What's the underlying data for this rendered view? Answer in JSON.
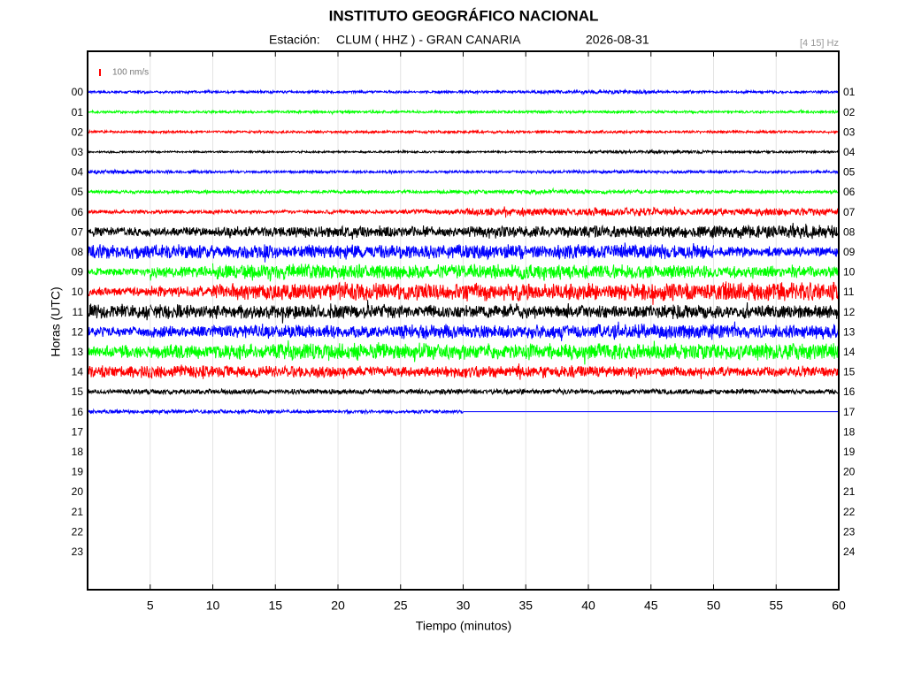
{
  "chart_data": {
    "type": "helicorder",
    "title": "INSTITUTO GEOGRÁFICO NACIONAL",
    "station_label": "Estación:",
    "station": "CLUM ( HHZ ) - GRAN CANARIA",
    "date": "2026-08-31",
    "filter": "[4 15] Hz",
    "scale_bar": 100,
    "scale_bar_label": "100 nm/s",
    "scale_bar_color": "#ff0000",
    "x_label": "Tiempo (minutos)",
    "y_label": "Horas (UTC)",
    "xlim": [
      0,
      60
    ],
    "xticks": [
      5,
      10,
      15,
      20,
      25,
      30,
      35,
      40,
      45,
      50,
      55,
      60
    ],
    "grid": true,
    "left_labels": [
      "00",
      "01",
      "02",
      "03",
      "04",
      "05",
      "06",
      "07",
      "08",
      "09",
      "10",
      "11",
      "12",
      "13",
      "14",
      "15",
      "16",
      "17",
      "18",
      "19",
      "20",
      "21",
      "22",
      "23"
    ],
    "right_labels": [
      "01",
      "02",
      "03",
      "04",
      "05",
      "06",
      "07",
      "08",
      "09",
      "10",
      "11",
      "12",
      "13",
      "14",
      "15",
      "16",
      "17",
      "18",
      "19",
      "20",
      "21",
      "22",
      "23",
      "24"
    ],
    "traces": [
      {
        "color": "#0000ff",
        "values": [
          20,
          20,
          20,
          20,
          20,
          20,
          20,
          25,
          30,
          20,
          20,
          20
        ]
      },
      {
        "color": "#00ff00",
        "values": [
          20,
          20,
          20,
          20,
          20,
          20,
          20,
          20,
          20,
          20,
          20,
          20
        ]
      },
      {
        "color": "#ff0000",
        "values": [
          20,
          20,
          20,
          20,
          20,
          20,
          20,
          20,
          20,
          20,
          20,
          20
        ]
      },
      {
        "color": "#000000",
        "values": [
          15,
          15,
          15,
          15,
          15,
          15,
          15,
          15,
          25,
          25,
          20,
          20
        ]
      },
      {
        "color": "#0000ff",
        "values": [
          30,
          25,
          20,
          20,
          20,
          20,
          20,
          25,
          25,
          25,
          20,
          20
        ]
      },
      {
        "color": "#00ff00",
        "values": [
          25,
          25,
          25,
          25,
          25,
          25,
          30,
          35,
          30,
          25,
          25,
          25
        ]
      },
      {
        "color": "#ff0000",
        "values": [
          30,
          30,
          30,
          30,
          30,
          40,
          60,
          60,
          70,
          60,
          60,
          60
        ]
      },
      {
        "color": "#000000",
        "values": [
          70,
          70,
          80,
          90,
          90,
          80,
          100,
          90,
          100,
          100,
          100,
          100
        ]
      },
      {
        "color": "#0000ff",
        "values": [
          110,
          110,
          110,
          110,
          110,
          110,
          110,
          110,
          110,
          110,
          80,
          80
        ]
      },
      {
        "color": "#00ff00",
        "values": [
          60,
          90,
          120,
          120,
          120,
          110,
          120,
          120,
          110,
          100,
          90,
          90
        ]
      },
      {
        "color": "#ff0000",
        "values": [
          70,
          90,
          130,
          130,
          140,
          130,
          140,
          130,
          130,
          140,
          150,
          150
        ]
      },
      {
        "color": "#000000",
        "values": [
          120,
          120,
          110,
          110,
          110,
          100,
          100,
          100,
          100,
          110,
          100,
          100
        ]
      },
      {
        "color": "#0000ff",
        "values": [
          80,
          90,
          110,
          100,
          90,
          110,
          110,
          110,
          120,
          120,
          110,
          110
        ]
      },
      {
        "color": "#00ff00",
        "values": [
          100,
          110,
          120,
          130,
          130,
          130,
          120,
          130,
          130,
          130,
          130,
          140
        ]
      },
      {
        "color": "#ff0000",
        "values": [
          100,
          110,
          100,
          90,
          90,
          80,
          90,
          90,
          80,
          80,
          80,
          80
        ]
      },
      {
        "color": "#000000",
        "values": [
          40,
          40,
          40,
          40,
          40,
          40,
          40,
          40,
          40,
          40,
          40,
          40
        ]
      },
      {
        "color": "#0000ff",
        "values": [
          30,
          30,
          30,
          25,
          25,
          25,
          null,
          null,
          null,
          null,
          null,
          null
        ]
      }
    ]
  }
}
